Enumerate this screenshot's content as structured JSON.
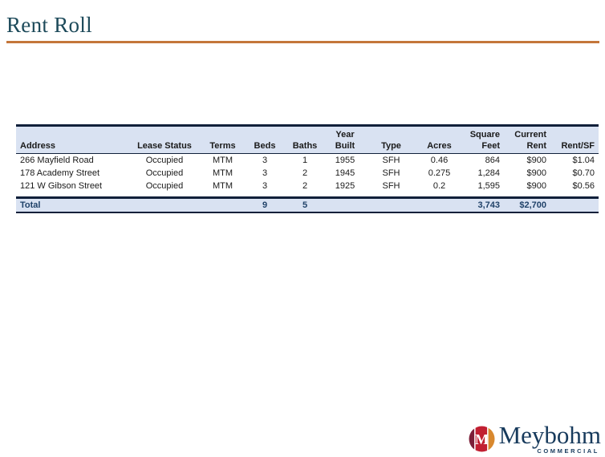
{
  "title": "Rent Roll",
  "colors": {
    "title_text": "#1d4a5a",
    "divider_orange": "#c4763a",
    "table_header_bg": "#d9e2f2",
    "table_border": "#10203a",
    "total_text": "#1f4168",
    "logo_navy": "#173a5c",
    "logo_red": "#c11f31",
    "logo_maroon": "#7c1f38",
    "logo_orange": "#d8882e"
  },
  "table": {
    "columns": [
      {
        "top": "",
        "label": "Address"
      },
      {
        "top": "",
        "label": "Lease Status"
      },
      {
        "top": "",
        "label": "Terms"
      },
      {
        "top": "",
        "label": "Beds"
      },
      {
        "top": "",
        "label": "Baths"
      },
      {
        "top": "Year",
        "label": "Built"
      },
      {
        "top": "",
        "label": "Type"
      },
      {
        "top": "",
        "label": "Acres"
      },
      {
        "top": "Square",
        "label": "Feet"
      },
      {
        "top": "Current",
        "label": "Rent"
      },
      {
        "top": "",
        "label": "Rent/SF"
      }
    ],
    "rows": [
      [
        "266 Mayfield Road",
        "Occupied",
        "MTM",
        "3",
        "1",
        "1955",
        "SFH",
        "0.46",
        "864",
        "$900",
        "$1.04"
      ],
      [
        "178 Academy Street",
        "Occupied",
        "MTM",
        "3",
        "2",
        "1945",
        "SFH",
        "0.275",
        "1,284",
        "$900",
        "$0.70"
      ],
      [
        "121 W Gibson Street",
        "Occupied",
        "MTM",
        "3",
        "2",
        "1925",
        "SFH",
        "0.2",
        "1,595",
        "$900",
        "$0.56"
      ]
    ],
    "total_row": [
      "Total",
      "",
      "",
      "9",
      "5",
      "",
      "",
      "",
      "3,743",
      "$2,700",
      ""
    ]
  },
  "logo": {
    "icon": "meybohm-m-circle-icon",
    "name": "Meybohm",
    "subtitle": "COMMERCIAL"
  }
}
